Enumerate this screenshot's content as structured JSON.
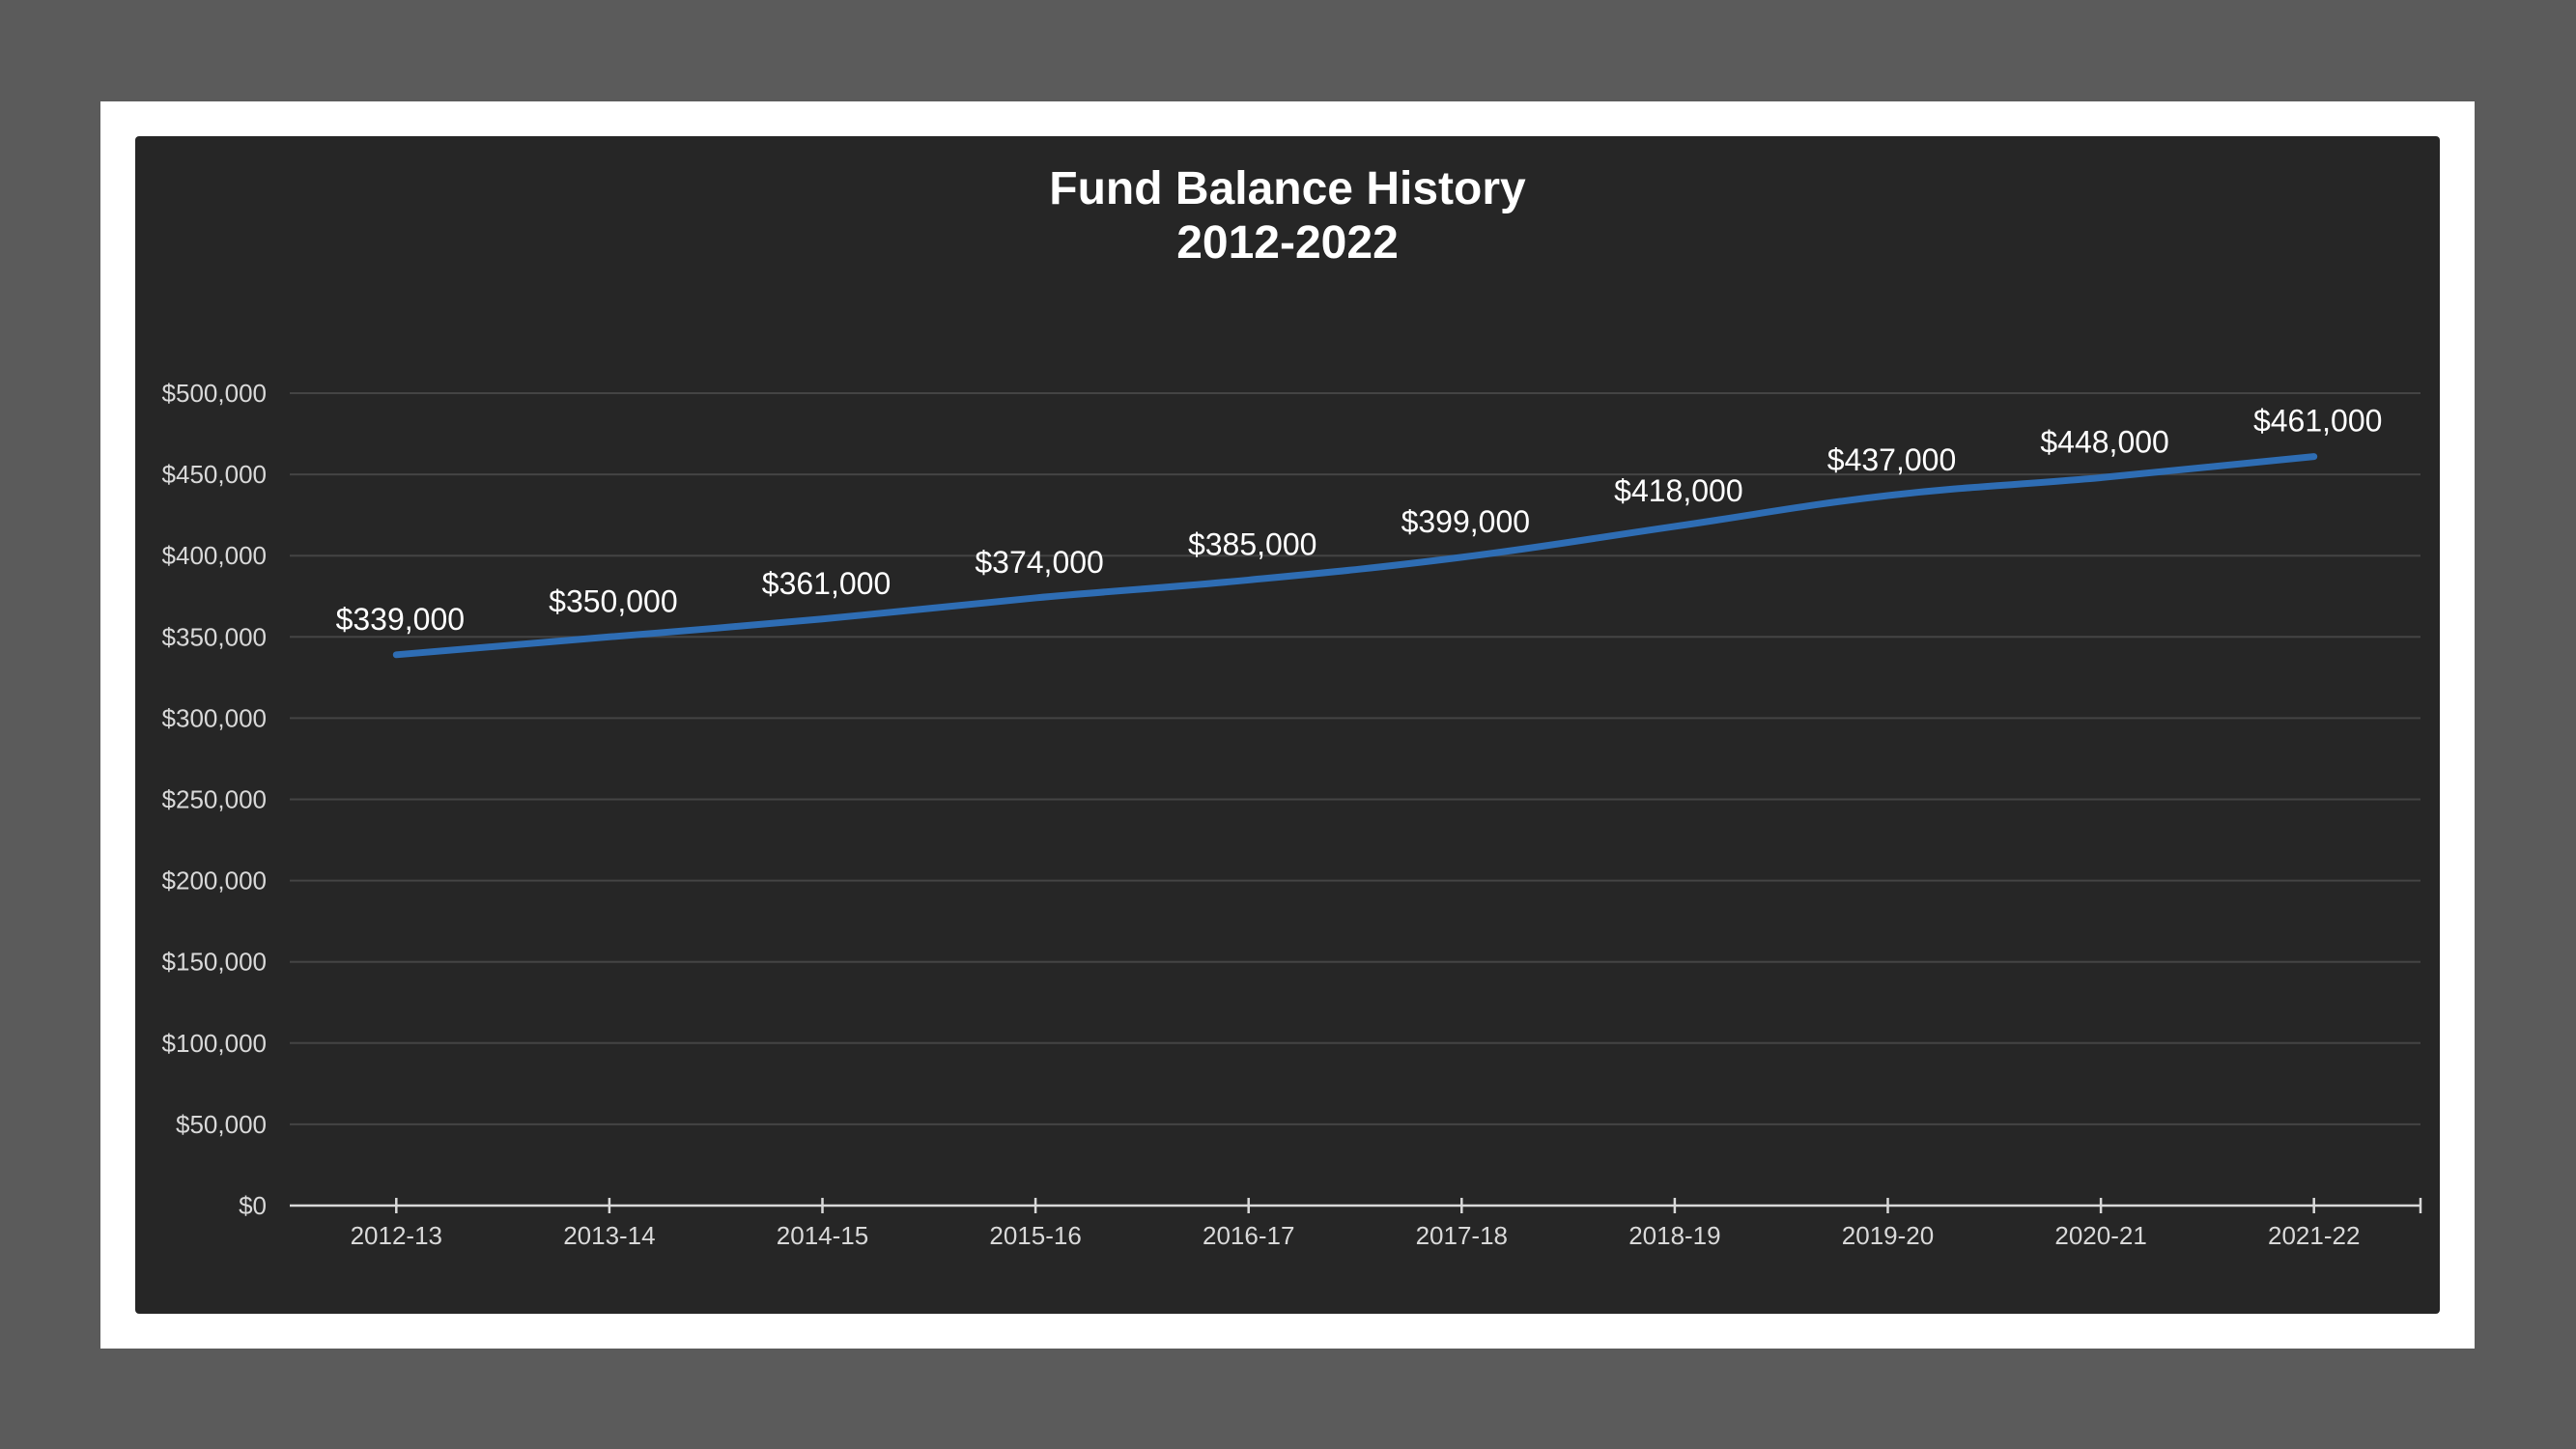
{
  "chart_data": {
    "type": "line",
    "title": [
      "Fund Balance History",
      "2012-2022"
    ],
    "categories": [
      "2012-13",
      "2013-14",
      "2014-15",
      "2015-16",
      "2016-17",
      "2017-18",
      "2018-19",
      "2019-20",
      "2020-21",
      "2021-22"
    ],
    "series": [
      {
        "values": [
          339000,
          350000,
          361000,
          374000,
          385000,
          399000,
          418000,
          437000,
          448000,
          461000
        ],
        "data_labels": [
          "$339,000",
          "$350,000",
          "$361,000",
          "$374,000",
          "$385,000",
          "$399,000",
          "$418,000",
          "$437,000",
          "$448,000",
          "$461,000"
        ],
        "color": "#2e6db4"
      }
    ],
    "ylim": [
      0,
      500000
    ],
    "yticks": [
      0,
      50000,
      100000,
      150000,
      200000,
      250000,
      300000,
      350000,
      400000,
      450000,
      500000
    ],
    "ytick_labels": [
      "$0",
      "$50,000",
      "$100,000",
      "$150,000",
      "$200,000",
      "$250,000",
      "$300,000",
      "$350,000",
      "$400,000",
      "$450,000",
      "$500,000"
    ],
    "grid": true,
    "legend": "none",
    "xlabel": "",
    "ylabel": ""
  },
  "colors": {
    "outer_background": "#5b5b5b",
    "frame": "#ffffff",
    "chart_background": "#262626",
    "series_line": "#2e6db4",
    "text": "#ffffff"
  }
}
